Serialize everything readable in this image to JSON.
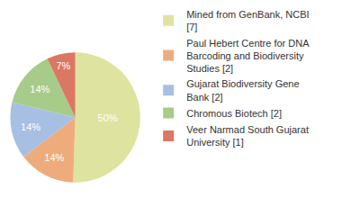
{
  "chart_data": {
    "type": "pie",
    "categories": [
      "Mined from GenBank, NCBI [7]",
      "Paul Hebert Centre for DNA Barcoding and Biodiversity Studies [2]",
      "Gujarat Biodiversity Gene Bank [2]",
      "Chromous Biotech [2]",
      "Veer Narmad South Gujarat University [1]"
    ],
    "values": [
      50,
      14,
      14,
      14,
      7
    ],
    "value_labels": [
      "50%",
      "14%",
      "14%",
      "14%",
      "7%"
    ],
    "colors": [
      "#dfe3a0",
      "#eeac7c",
      "#a6bfe2",
      "#a7cb89",
      "#dc7763"
    ],
    "data_labels": true,
    "legend": "right"
  }
}
